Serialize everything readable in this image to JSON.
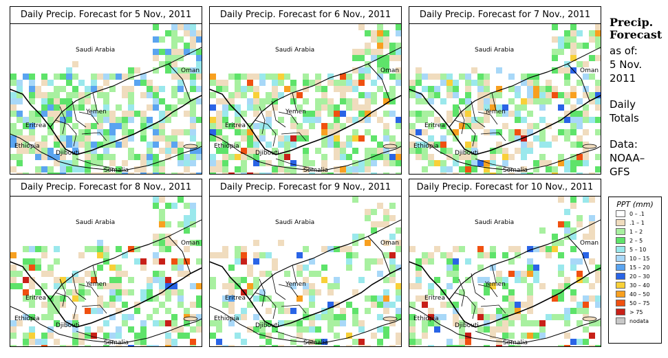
{
  "panels": [
    {
      "title": "Daily Precip. Forecast for  5 Nov., 2011",
      "seed": 11,
      "density": 0.62,
      "intensity": 1.0
    },
    {
      "title": "Daily Precip. Forecast for  6 Nov., 2011",
      "seed": 23,
      "density": 0.58,
      "intensity": 0.8
    },
    {
      "title": "Daily Precip. Forecast for  7 Nov., 2011",
      "seed": 37,
      "density": 0.55,
      "intensity": 0.75
    },
    {
      "title": "Daily Precip. Forecast for  8 Nov., 2011",
      "seed": 41,
      "density": 0.45,
      "intensity": 0.85
    },
    {
      "title": "Daily Precip. Forecast for  9 Nov., 2011",
      "seed": 53,
      "density": 0.42,
      "intensity": 0.9
    },
    {
      "title": "Daily Precip. Forecast for  10 Nov., 2011",
      "seed": 67,
      "density": 0.4,
      "intensity": 0.7
    }
  ],
  "map_labels": {
    "saudi": "Saudi Arabia",
    "oman": "Oman",
    "yemen": "Yemen",
    "eritrea": "Eritrea",
    "ethiopia": "Ethiopia",
    "djibouti": "Djibouti",
    "somalia": "Somalia"
  },
  "side": {
    "title1": "Precip.",
    "title2": "Forecast",
    "asof1": "as of:",
    "asof2": "5 Nov.",
    "asof3": "2011",
    "daily1": "Daily",
    "daily2": "Totals",
    "data1": "Data:",
    "data2": "NOAA–",
    "data3": "GFS"
  },
  "legend": {
    "title": "PPT (mm)",
    "items": [
      {
        "label": "0 – .1",
        "color": "#ffffff"
      },
      {
        "label": ".1 – 1",
        "color": "#f0dcbe"
      },
      {
        "label": "1 – 2",
        "color": "#a8f0a0"
      },
      {
        "label": "2 – 5",
        "color": "#5ee36a"
      },
      {
        "label": "5 – 10",
        "color": "#9ae8ec"
      },
      {
        "label": "10 – 15",
        "color": "#a8d8f8"
      },
      {
        "label": "15 – 20",
        "color": "#5aa4f0"
      },
      {
        "label": "20 – 30",
        "color": "#2a64e6"
      },
      {
        "label": "30 – 40",
        "color": "#f8d038"
      },
      {
        "label": "40 – 50",
        "color": "#f8a020"
      },
      {
        "label": "50 – 75",
        "color": "#f05010"
      },
      {
        "label": "> 75",
        "color": "#c82018"
      },
      {
        "label": "nodata",
        "color": "#c8c8c8"
      }
    ]
  }
}
